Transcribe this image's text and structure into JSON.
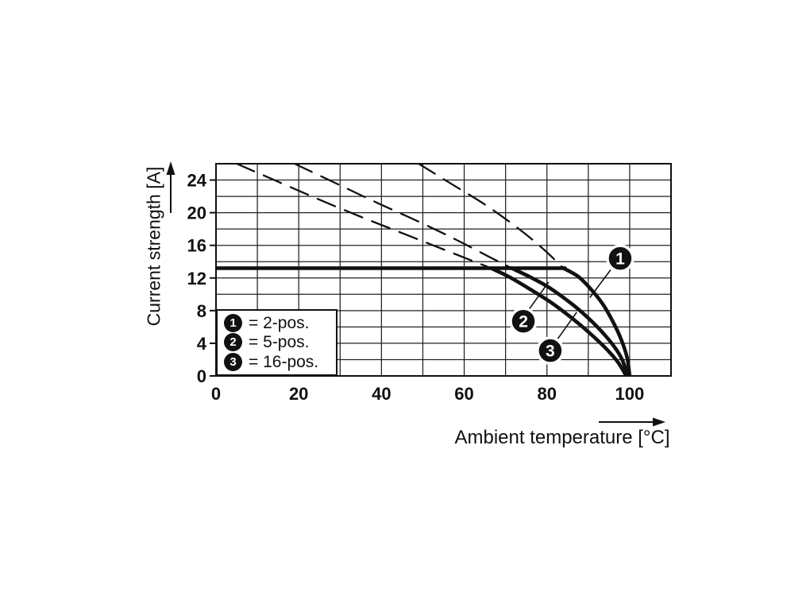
{
  "figure": {
    "background": "#ffffff",
    "ink": "#111111"
  },
  "chart_data": {
    "type": "line",
    "title": "",
    "xlabel": "Ambient temperature [°C]",
    "ylabel": "Current strength [A]",
    "xlim": [
      0,
      110
    ],
    "ylim": [
      0,
      26
    ],
    "x_ticks": [
      0,
      20,
      40,
      60,
      80,
      100
    ],
    "y_ticks": [
      0,
      4,
      8,
      12,
      16,
      20,
      24
    ],
    "grid": {
      "on": true,
      "x_step": 10,
      "y_step": 2
    },
    "max_current_line": {
      "value_A": 13.2,
      "from_C": 0,
      "to_C": 84
    },
    "series": [
      {
        "name": "2-pos.",
        "marker": "1",
        "dashed_above_limit": [
          [
            49,
            26
          ],
          [
            57,
            23.5
          ],
          [
            65,
            21
          ],
          [
            73,
            18.1
          ],
          [
            79,
            15.6
          ],
          [
            84,
            13.2
          ]
        ],
        "solid": [
          [
            84,
            13.2
          ],
          [
            87.5,
            12.2
          ],
          [
            90.5,
            10.7
          ],
          [
            93.5,
            8.8
          ],
          [
            96,
            6.6
          ],
          [
            98,
            4.4
          ],
          [
            99.4,
            2.2
          ],
          [
            100,
            0
          ]
        ]
      },
      {
        "name": "5-pos.",
        "marker": "2",
        "dashed_above_limit": [
          [
            19,
            26
          ],
          [
            29,
            23.6
          ],
          [
            39,
            21.2
          ],
          [
            49,
            18.9
          ],
          [
            58,
            16.7
          ],
          [
            66,
            14.6
          ],
          [
            71.5,
            13.2
          ]
        ],
        "solid": [
          [
            71.5,
            13.2
          ],
          [
            76,
            12.1
          ],
          [
            80,
            11.0
          ],
          [
            84,
            9.6
          ],
          [
            88,
            8.0
          ],
          [
            92,
            6.1
          ],
          [
            95.5,
            4.1
          ],
          [
            98,
            2.2
          ],
          [
            99.6,
            0
          ]
        ]
      },
      {
        "name": "16-pos.",
        "marker": "3",
        "dashed_above_limit": [
          [
            5,
            26
          ],
          [
            15,
            23.8
          ],
          [
            25,
            21.6
          ],
          [
            35,
            19.5
          ],
          [
            45,
            17.5
          ],
          [
            54,
            15.7
          ],
          [
            61,
            14.3
          ],
          [
            66.5,
            13.2
          ]
        ],
        "solid": [
          [
            66.5,
            13.2
          ],
          [
            71,
            12.1
          ],
          [
            76,
            10.6
          ],
          [
            81,
            9.0
          ],
          [
            86,
            7.1
          ],
          [
            90,
            5.4
          ],
          [
            94,
            3.5
          ],
          [
            97,
            1.8
          ],
          [
            99.2,
            0
          ]
        ]
      }
    ],
    "legend": [
      {
        "marker": "1",
        "label": "= 2-pos."
      },
      {
        "marker": "2",
        "label": "= 5-pos."
      },
      {
        "marker": "3",
        "label": "= 16-pos."
      }
    ],
    "callouts": [
      {
        "marker": "1",
        "at": [
          97.7,
          14.4
        ],
        "leader": [
          [
            95.4,
            13.0
          ],
          [
            90.4,
            9.6
          ]
        ]
      },
      {
        "marker": "2",
        "at": [
          74.3,
          6.7
        ],
        "leader": [
          [
            75.6,
            8.1
          ],
          [
            80.4,
            11.5
          ]
        ]
      },
      {
        "marker": "3",
        "at": [
          80.8,
          3.1
        ],
        "leader": [
          [
            82.4,
            4.4
          ],
          [
            87.2,
            7.8
          ]
        ]
      }
    ],
    "legend_position": "lower-left-inside",
    "notes": "dashed segments are the derating curves above the maximum current line; solid below"
  }
}
